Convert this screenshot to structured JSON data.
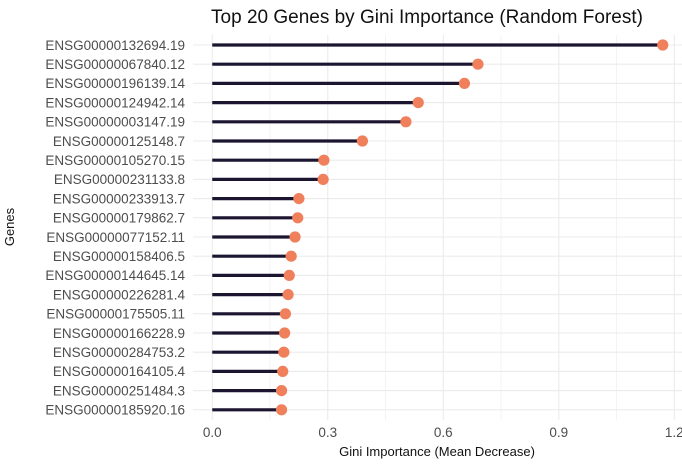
{
  "chart_data": {
    "type": "lollipop",
    "title": "Top 20 Genes by Gini Importance (Random Forest)",
    "xlabel": "Gini Importance (Mean Decrease)",
    "ylabel": "Genes",
    "xlim": [
      -0.05,
      1.22
    ],
    "xticks": [
      0.0,
      0.3,
      0.6,
      0.9,
      1.2
    ],
    "xtick_labels": [
      "0.0",
      "0.3",
      "0.6",
      "0.9",
      "1.2"
    ],
    "grid": true,
    "colors": {
      "stem": "#1c1530",
      "point": "#f07f5c",
      "grid": "#ebebeb"
    },
    "categories": [
      "ENSG00000132694.19",
      "ENSG00000067840.12",
      "ENSG00000196139.14",
      "ENSG00000124942.14",
      "ENSG00000003147.19",
      "ENSG00000125148.7",
      "ENSG00000105270.15",
      "ENSG00000231133.8",
      "ENSG00000233913.7",
      "ENSG00000179862.7",
      "ENSG00000077152.11",
      "ENSG00000158406.5",
      "ENSG00000144645.14",
      "ENSG00000226281.4",
      "ENSG00000175505.11",
      "ENSG00000166228.9",
      "ENSG00000284753.2",
      "ENSG00000164105.4",
      "ENSG00000251484.3",
      "ENSG00000185920.16"
    ],
    "values": [
      1.17,
      0.69,
      0.655,
      0.535,
      0.503,
      0.39,
      0.29,
      0.288,
      0.225,
      0.222,
      0.215,
      0.205,
      0.2,
      0.197,
      0.19,
      0.188,
      0.186,
      0.183,
      0.18,
      0.18
    ]
  }
}
